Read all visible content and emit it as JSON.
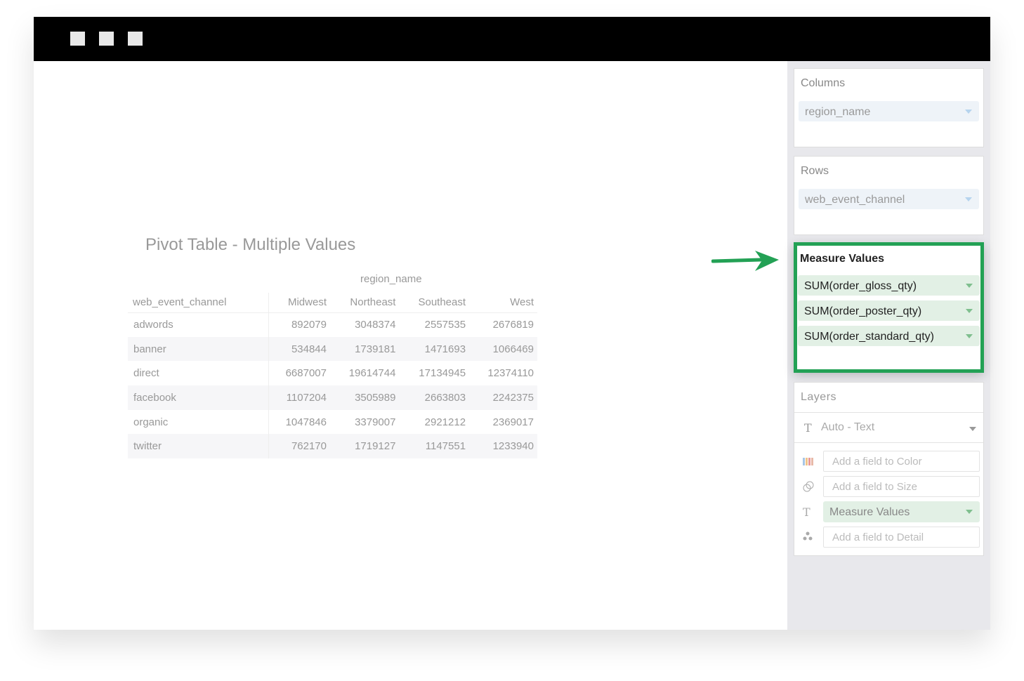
{
  "window": {
    "controls": [
      "square",
      "square",
      "square"
    ]
  },
  "chart": {
    "title": "Pivot Table - Multiple Values",
    "column_field": "region_name",
    "row_field": "web_event_channel",
    "columns": [
      "Midwest",
      "Northeast",
      "Southeast",
      "West"
    ],
    "rows": [
      {
        "label": "adwords",
        "values": [
          "892079",
          "3048374",
          "2557535",
          "2676819"
        ]
      },
      {
        "label": "banner",
        "values": [
          "534844",
          "1739181",
          "1471693",
          "1066469"
        ]
      },
      {
        "label": "direct",
        "values": [
          "6687007",
          "19614744",
          "17134945",
          "12374110"
        ]
      },
      {
        "label": "facebook",
        "values": [
          "1107204",
          "3505989",
          "2663803",
          "2242375"
        ]
      },
      {
        "label": "organic",
        "values": [
          "1047846",
          "3379007",
          "2921212",
          "2369017"
        ]
      },
      {
        "label": "twitter",
        "values": [
          "762170",
          "1719127",
          "1147551",
          "1233940"
        ]
      }
    ]
  },
  "sidebar": {
    "columns": {
      "label": "Columns",
      "field": "region_name"
    },
    "rows": {
      "label": "Rows",
      "field": "web_event_channel"
    },
    "measure_values": {
      "label": "Measure Values",
      "fields": [
        "SUM(order_gloss_qty)",
        "SUM(order_poster_qty)",
        "SUM(order_standard_qty)"
      ],
      "highlight_color": "#23a155"
    },
    "layers": {
      "label": "Layers",
      "mark_type": "Auto - Text",
      "color_placeholder": "Add a field to Color",
      "size_placeholder": "Add a field to Size",
      "text_field": "Measure Values",
      "detail_placeholder": "Add a field to Detail"
    }
  }
}
